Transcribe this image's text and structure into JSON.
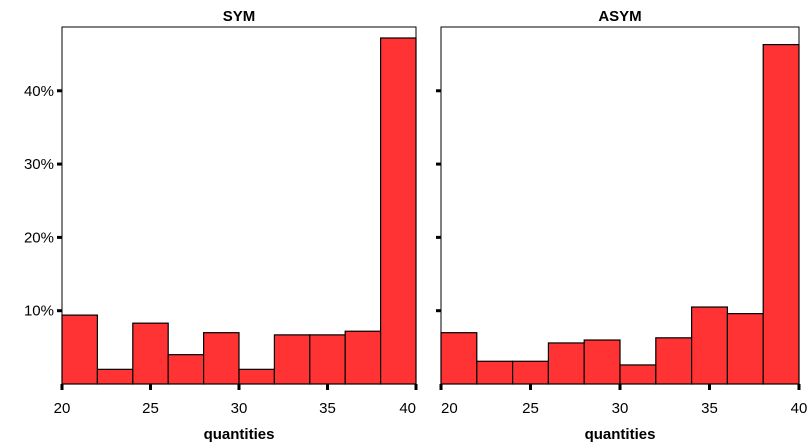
{
  "chart_data": [
    {
      "type": "bar",
      "title": "SYM",
      "xlabel": "quantities",
      "ylabel": "",
      "bin_edges": [
        20,
        22,
        24,
        26,
        28,
        30,
        32,
        34,
        36,
        38,
        40
      ],
      "values": [
        9.4,
        2.0,
        8.3,
        4.0,
        7.0,
        2.0,
        6.7,
        6.7,
        7.2,
        47.2
      ],
      "xticks": [
        20,
        25,
        30,
        35,
        40
      ],
      "yticks": [
        10,
        20,
        30,
        40
      ],
      "ytick_labels": [
        "10%",
        "20%",
        "30%",
        "40%"
      ],
      "xlim": [
        20,
        40
      ],
      "ylim": [
        0,
        48.7
      ],
      "bar_color": "#FF3333",
      "grid": false
    },
    {
      "type": "bar",
      "title": "ASYM",
      "xlabel": "quantities",
      "ylabel": "",
      "bin_edges": [
        20,
        22,
        24,
        26,
        28,
        30,
        32,
        34,
        36,
        38,
        40
      ],
      "values": [
        7.0,
        3.1,
        3.1,
        5.6,
        6.0,
        2.6,
        6.3,
        10.5,
        9.6,
        46.3
      ],
      "xticks": [
        20,
        25,
        30,
        35,
        40
      ],
      "yticks": [
        10,
        20,
        30,
        40
      ],
      "ytick_labels": [
        "",
        "",
        "",
        ""
      ],
      "xlim": [
        20,
        40
      ],
      "ylim": [
        0,
        48.7
      ],
      "bar_color": "#FF3333",
      "grid": false
    }
  ]
}
